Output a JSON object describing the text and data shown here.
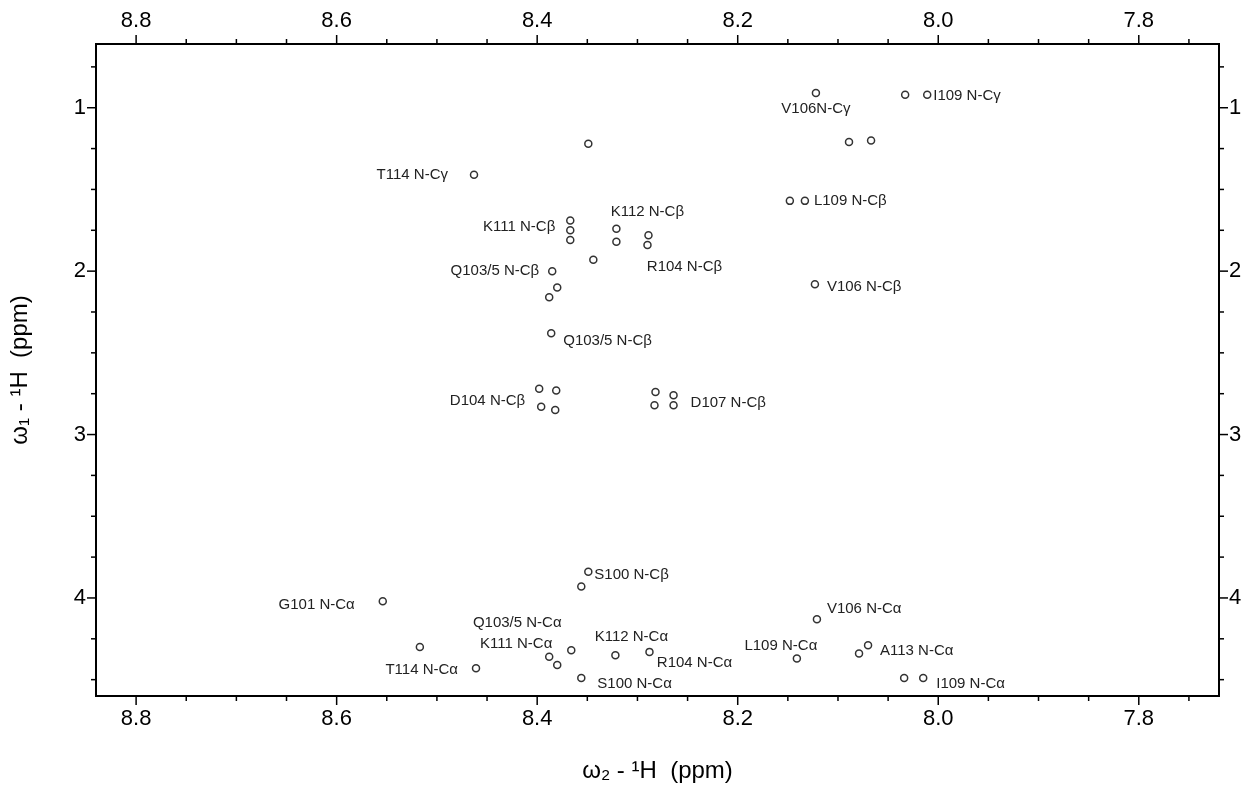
{
  "chart_data": {
    "type": "scatter",
    "xlabel": "ω₂ - ¹H  (ppm)",
    "ylabel": "ω₁ - ¹H  (ppm)",
    "x": [
      8.122,
      8.033,
      8.011,
      8.089,
      8.067,
      8.349,
      8.463,
      8.148,
      8.133,
      8.367,
      8.367,
      8.367,
      8.321,
      8.321,
      8.289,
      8.29,
      8.344,
      8.385,
      8.123,
      8.38,
      8.388,
      8.386,
      8.398,
      8.381,
      8.396,
      8.382,
      8.282,
      8.264,
      8.283,
      8.264,
      8.349,
      8.356,
      8.554,
      8.517,
      8.121,
      8.366,
      8.388,
      8.38,
      8.322,
      8.288,
      8.461,
      8.141,
      8.079,
      8.07,
      8.034,
      8.015,
      8.356
    ],
    "series": [
      {
        "color": "#333333",
        "values": [
          0.91,
          0.92,
          0.92,
          1.21,
          1.2,
          1.22,
          1.41,
          1.57,
          1.57,
          1.69,
          1.75,
          1.81,
          1.74,
          1.82,
          1.78,
          1.84,
          1.93,
          2.0,
          2.08,
          2.1,
          2.16,
          2.38,
          2.72,
          2.73,
          2.83,
          2.85,
          2.74,
          2.76,
          2.82,
          2.82,
          3.84,
          3.93,
          4.02,
          4.3,
          4.13,
          4.32,
          4.36,
          4.41,
          4.35,
          4.33,
          4.43,
          4.37,
          4.34,
          4.29,
          4.49,
          4.49,
          4.49
        ]
      }
    ],
    "marker": "circle",
    "legend": false,
    "grid": false,
    "xlim": [
      8.84,
      7.72
    ],
    "xticks": [
      8.8,
      {
        "value": 8.75,
        "label": null
      },
      {
        "value": 8.7,
        "label": null
      },
      {
        "value": 8.65,
        "label": null
      },
      8.6,
      {
        "value": 8.55,
        "label": null
      },
      {
        "value": 8.5,
        "label": null
      },
      {
        "value": 8.45,
        "label": null
      },
      8.4,
      {
        "value": 8.35,
        "label": null
      },
      {
        "value": 8.3,
        "label": null
      },
      {
        "value": 8.25,
        "label": null
      },
      8.2,
      {
        "value": 8.15,
        "label": null
      },
      {
        "value": 8.1,
        "label": null
      },
      {
        "value": 8.05,
        "label": null
      },
      {
        "value": 8,
        "label": "8.0"
      },
      {
        "value": 7.95,
        "label": null
      },
      {
        "value": 7.9,
        "label": null
      },
      {
        "value": 7.85,
        "label": null
      },
      7.8,
      {
        "value": 7.75,
        "label": null
      }
    ],
    "x2lim": [
      8.84,
      7.72
    ],
    "x2ticks": [
      8.8,
      {
        "value": 8.75,
        "label": null
      },
      {
        "value": 8.7,
        "label": null
      },
      {
        "value": 8.65,
        "label": null
      },
      8.6,
      {
        "value": 8.55,
        "label": null
      },
      {
        "value": 8.5,
        "label": null
      },
      {
        "value": 8.45,
        "label": null
      },
      8.4,
      {
        "value": 8.35,
        "label": null
      },
      {
        "value": 8.3,
        "label": null
      },
      {
        "value": 8.25,
        "label": null
      },
      8.2,
      {
        "value": 8.15,
        "label": null
      },
      {
        "value": 8.1,
        "label": null
      },
      {
        "value": 8.05,
        "label": null
      },
      {
        "value": 8,
        "label": "8.0"
      },
      {
        "value": 7.95,
        "label": null
      },
      {
        "value": 7.9,
        "label": null
      },
      {
        "value": 7.85,
        "label": null
      },
      7.8,
      {
        "value": 7.75,
        "label": null
      }
    ],
    "ylim": [
      4.6,
      0.61
    ],
    "yticks": [
      {
        "value": 0.75,
        "label": null
      },
      1,
      {
        "value": 1.25,
        "label": null
      },
      {
        "value": 1.5,
        "label": null
      },
      {
        "value": 1.75,
        "label": null
      },
      2,
      {
        "value": 2.25,
        "label": null
      },
      {
        "value": 2.5,
        "label": null
      },
      {
        "value": 2.75,
        "label": null
      },
      3,
      {
        "value": 3.25,
        "label": null
      },
      {
        "value": 3.5,
        "label": null
      },
      {
        "value": 3.75,
        "label": null
      },
      4,
      {
        "value": 4.25,
        "label": null
      },
      {
        "value": 4.5,
        "label": null
      }
    ],
    "y2lim": [
      4.6,
      0.61
    ],
    "y2ticks": [
      {
        "value": 0.75,
        "label": null
      },
      1,
      {
        "value": 1.25,
        "label": null
      },
      {
        "value": 1.5,
        "label": null
      },
      {
        "value": 1.75,
        "label": null
      },
      2,
      {
        "value": 2.25,
        "label": null
      },
      {
        "value": 2.5,
        "label": null
      },
      {
        "value": 2.75,
        "label": null
      },
      3,
      {
        "value": 3.25,
        "label": null
      },
      {
        "value": 3.5,
        "label": null
      },
      {
        "value": 3.75,
        "label": null
      },
      4,
      {
        "value": 4.25,
        "label": null
      },
      {
        "value": 4.5,
        "label": null
      }
    ],
    "annotations": [
      {
        "text": "V106N-Cγ",
        "x": 8.122,
        "y": 0.91
      },
      {
        "text": "I109 N-Cγ",
        "x": 8.011,
        "y": 0.92
      },
      {
        "text": "T114 N-Cγ",
        "x": 8.463,
        "y": 1.41
      },
      {
        "text": "K111 N-Cβ",
        "x": 8.367,
        "y": 1.75
      },
      {
        "text": "K112 N-Cβ",
        "x": 8.321,
        "y": 1.74
      },
      {
        "text": "L109 N-Cβ",
        "x": 8.133,
        "y": 1.57
      },
      {
        "text": "R104 N-Cβ",
        "x": 8.29,
        "y": 1.84
      },
      {
        "text": "Q103/5 N-Cβ",
        "x": 8.385,
        "y": 2.0
      },
      {
        "text": "V106 N-Cβ",
        "x": 8.123,
        "y": 2.08
      },
      {
        "text": "Q103/5 N-Cβ",
        "x": 8.386,
        "y": 2.38
      },
      {
        "text": "D104 N-Cβ",
        "x": 8.398,
        "y": 2.72
      },
      {
        "text": "D107 N-Cβ",
        "x": 8.264,
        "y": 2.76
      },
      {
        "text": "S100 N-Cβ",
        "x": 8.349,
        "y": 3.84
      },
      {
        "text": "G101 N-Cα",
        "x": 8.554,
        "y": 4.02
      },
      {
        "text": "V106 N-Cα",
        "x": 8.121,
        "y": 4.13
      },
      {
        "text": "Q103/5 N-Cα",
        "x": 8.366,
        "y": 4.32
      },
      {
        "text": "K111 N-Cα",
        "x": 8.388,
        "y": 4.36
      },
      {
        "text": "K112 N-Cα",
        "x": 8.322,
        "y": 4.35
      },
      {
        "text": "R104 N-Cα",
        "x": 8.288,
        "y": 4.33
      },
      {
        "text": "L109 N-Cα",
        "x": 8.141,
        "y": 4.37
      },
      {
        "text": "A113 N-Cα",
        "x": 8.079,
        "y": 4.34
      },
      {
        "text": "T114 N-Cα",
        "x": 8.461,
        "y": 4.43
      },
      {
        "text": "S100 N-Cα",
        "x": 8.356,
        "y": 4.49
      },
      {
        "text": "I109 N-Cα",
        "x": 8.015,
        "y": 4.49
      }
    ]
  }
}
